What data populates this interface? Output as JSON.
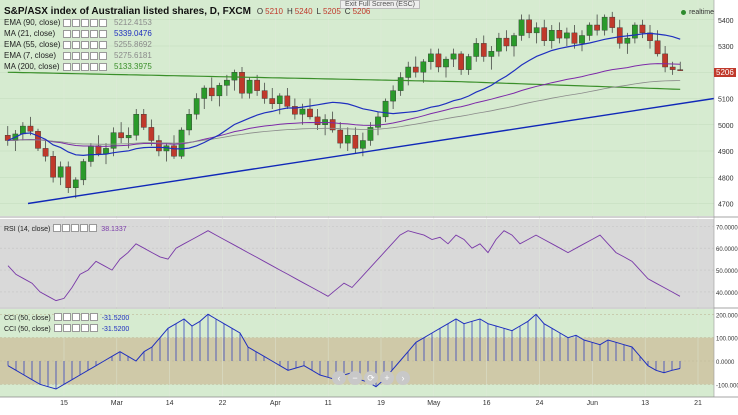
{
  "header": {
    "symbol": "S&P/ASX index of Australian listed shares, D, FXCM",
    "ohlc": [
      {
        "k": "O",
        "v": "5210"
      },
      {
        "k": "H",
        "v": "5240"
      },
      {
        "k": "L",
        "v": "5205"
      },
      {
        "k": "C",
        "v": "5206"
      }
    ],
    "exit_fullscreen": "Exit Full Screen (ESC)",
    "realtime": "realtime"
  },
  "indicators": [
    {
      "name": "EMA (90, close)",
      "value": "5212.4153",
      "color": "#8a8a8a"
    },
    {
      "name": "MA (21, close)",
      "value": "5339.0476",
      "color": "#1f2fbf"
    },
    {
      "name": "EMA (55, close)",
      "value": "5255.8692",
      "color": "#8a8a8a"
    },
    {
      "name": "EMA (7, close)",
      "value": "5275.6181",
      "color": "#8a8a8a"
    },
    {
      "name": "MA (200, close)",
      "value": "5133.3975",
      "color": "#3a8f2a"
    }
  ],
  "price_badge": "5206",
  "rsi": {
    "label": "RSI (14, close)",
    "value": "38.1337",
    "ticks": [
      "70.0000",
      "60.0000",
      "50.0000",
      "40.0000"
    ]
  },
  "cci": {
    "rows": [
      {
        "label": "CCI (50, close)",
        "value": "-31.5200"
      },
      {
        "label": "CCI (50, close)",
        "value": "-31.5200"
      }
    ],
    "ticks": [
      "200.0000",
      "100.0000",
      "0.0000",
      "-100.0000"
    ]
  },
  "x_ticks": [
    "15",
    "Mar",
    "14",
    "22",
    "Apr",
    "11",
    "19",
    "May",
    "16",
    "24",
    "Jun",
    "13",
    "21"
  ],
  "price_ticks": [
    "5400",
    "5300",
    "5200",
    "5100",
    "5000",
    "4900",
    "4800",
    "4700"
  ],
  "nav": [
    "‹",
    "−",
    "⟳",
    "+",
    "›"
  ],
  "colors": {
    "bg": "#d6ebd0",
    "up": "#2a9a2a",
    "down": "#c0392b",
    "ma21": "#1f2fbf",
    "ema": "#7d2aa8",
    "ma200": "#3a8f2a",
    "trend": "#1028b8",
    "rsi": "#7a3aa8",
    "cci": "#1f2fbf"
  },
  "chart_data": [
    {
      "type": "candlestick",
      "title": "S&P/ASX index of Australian listed shares, D, FXCM",
      "ylim": [
        4660,
        5460
      ],
      "ohlc": [
        [
          4960,
          4995,
          4920,
          4940
        ],
        [
          4940,
          4980,
          4900,
          4965
        ],
        [
          4965,
          5010,
          4940,
          4995
        ],
        [
          4995,
          5030,
          4960,
          4975
        ],
        [
          4975,
          4985,
          4900,
          4910
        ],
        [
          4910,
          4940,
          4860,
          4880
        ],
        [
          4880,
          4900,
          4780,
          4800
        ],
        [
          4800,
          4860,
          4770,
          4840
        ],
        [
          4840,
          4860,
          4740,
          4760
        ],
        [
          4760,
          4800,
          4720,
          4790
        ],
        [
          4790,
          4870,
          4770,
          4860
        ],
        [
          4860,
          4930,
          4840,
          4920
        ],
        [
          4920,
          4960,
          4880,
          4890
        ],
        [
          4890,
          4930,
          4850,
          4910
        ],
        [
          4910,
          4990,
          4880,
          4970
        ],
        [
          4970,
          5010,
          4930,
          4950
        ],
        [
          4950,
          4990,
          4910,
          4960
        ],
        [
          4960,
          5060,
          4940,
          5040
        ],
        [
          5040,
          5060,
          4980,
          4990
        ],
        [
          4990,
          5020,
          4920,
          4940
        ],
        [
          4940,
          4960,
          4880,
          4900
        ],
        [
          4900,
          4930,
          4860,
          4920
        ],
        [
          4920,
          4960,
          4870,
          4880
        ],
        [
          4880,
          4990,
          4870,
          4980
        ],
        [
          4980,
          5060,
          4960,
          5040
        ],
        [
          5040,
          5120,
          5020,
          5100
        ],
        [
          5100,
          5150,
          5060,
          5140
        ],
        [
          5140,
          5180,
          5090,
          5110
        ],
        [
          5110,
          5160,
          5070,
          5150
        ],
        [
          5150,
          5190,
          5110,
          5170
        ],
        [
          5170,
          5210,
          5130,
          5200
        ],
        [
          5200,
          5220,
          5100,
          5120
        ],
        [
          5120,
          5180,
          5100,
          5170
        ],
        [
          5170,
          5190,
          5110,
          5130
        ],
        [
          5130,
          5160,
          5080,
          5100
        ],
        [
          5100,
          5140,
          5060,
          5080
        ],
        [
          5080,
          5120,
          5040,
          5110
        ],
        [
          5110,
          5140,
          5060,
          5070
        ],
        [
          5070,
          5100,
          5020,
          5040
        ],
        [
          5040,
          5080,
          5000,
          5060
        ],
        [
          5060,
          5100,
          5020,
          5030
        ],
        [
          5030,
          5060,
          4980,
          5000
        ],
        [
          5000,
          5040,
          4960,
          5020
        ],
        [
          5020,
          5050,
          4970,
          4980
        ],
        [
          4980,
          5010,
          4910,
          4930
        ],
        [
          4930,
          4990,
          4900,
          4960
        ],
        [
          4960,
          4990,
          4890,
          4910
        ],
        [
          4910,
          4970,
          4880,
          4940
        ],
        [
          4940,
          5010,
          4920,
          4990
        ],
        [
          4990,
          5050,
          4960,
          5030
        ],
        [
          5030,
          5100,
          5010,
          5090
        ],
        [
          5090,
          5150,
          5060,
          5130
        ],
        [
          5130,
          5200,
          5110,
          5180
        ],
        [
          5180,
          5240,
          5150,
          5220
        ],
        [
          5220,
          5260,
          5180,
          5200
        ],
        [
          5200,
          5250,
          5160,
          5240
        ],
        [
          5240,
          5290,
          5210,
          5270
        ],
        [
          5270,
          5290,
          5200,
          5220
        ],
        [
          5220,
          5260,
          5180,
          5250
        ],
        [
          5250,
          5290,
          5220,
          5270
        ],
        [
          5270,
          5280,
          5190,
          5210
        ],
        [
          5210,
          5270,
          5190,
          5260
        ],
        [
          5260,
          5330,
          5240,
          5310
        ],
        [
          5310,
          5340,
          5240,
          5260
        ],
        [
          5260,
          5300,
          5210,
          5280
        ],
        [
          5280,
          5350,
          5260,
          5330
        ],
        [
          5330,
          5360,
          5280,
          5300
        ],
        [
          5300,
          5350,
          5260,
          5340
        ],
        [
          5340,
          5420,
          5320,
          5400
        ],
        [
          5400,
          5420,
          5330,
          5350
        ],
        [
          5350,
          5390,
          5310,
          5370
        ],
        [
          5370,
          5400,
          5300,
          5320
        ],
        [
          5320,
          5380,
          5290,
          5360
        ],
        [
          5360,
          5390,
          5310,
          5330
        ],
        [
          5330,
          5370,
          5300,
          5350
        ],
        [
          5350,
          5380,
          5290,
          5310
        ],
        [
          5310,
          5360,
          5280,
          5340
        ],
        [
          5340,
          5390,
          5320,
          5380
        ],
        [
          5380,
          5420,
          5340,
          5360
        ],
        [
          5360,
          5420,
          5340,
          5410
        ],
        [
          5410,
          5430,
          5350,
          5370
        ],
        [
          5370,
          5400,
          5290,
          5310
        ],
        [
          5310,
          5350,
          5270,
          5330
        ],
        [
          5330,
          5390,
          5310,
          5380
        ],
        [
          5380,
          5400,
          5330,
          5350
        ],
        [
          5350,
          5380,
          5290,
          5320
        ],
        [
          5320,
          5360,
          5260,
          5270
        ],
        [
          5270,
          5300,
          5200,
          5220
        ],
        [
          5220,
          5240,
          5190,
          5210
        ],
        [
          5210,
          5240,
          5205,
          5206
        ]
      ],
      "trendline": [
        [
          0,
          4700
        ],
        [
          95,
          5100
        ]
      ]
    },
    {
      "type": "line",
      "name": "RSI (14, close)",
      "ylim": [
        34,
        72
      ],
      "values": [
        52,
        48,
        46,
        44,
        40,
        38,
        36,
        37,
        42,
        48,
        50,
        54,
        52,
        50,
        55,
        58,
        62,
        60,
        58,
        56,
        55,
        60,
        62,
        64,
        66,
        68,
        66,
        64,
        62,
        60,
        58,
        56,
        54,
        52,
        50,
        48,
        46,
        44,
        42,
        40,
        38,
        41,
        44,
        42,
        46,
        50,
        54,
        58,
        62,
        66,
        68,
        67,
        66,
        64,
        65,
        62,
        66,
        64,
        60,
        62,
        58,
        64,
        68,
        66,
        62,
        64,
        66,
        64,
        62,
        60,
        58,
        60,
        62,
        64,
        66,
        62,
        58,
        56,
        54,
        50,
        46,
        44,
        42,
        40,
        38
      ]
    },
    {
      "type": "bar",
      "name": "CCI (50, close)",
      "ylim": [
        -150,
        210
      ],
      "values": [
        -20,
        -40,
        -60,
        -80,
        -100,
        -110,
        -120,
        -100,
        -80,
        -60,
        -40,
        -20,
        0,
        20,
        40,
        20,
        0,
        40,
        60,
        100,
        140,
        160,
        180,
        150,
        170,
        200,
        180,
        160,
        140,
        120,
        60,
        40,
        20,
        0,
        -20,
        -40,
        -30,
        -20,
        -40,
        -60,
        -70,
        -80,
        -60,
        -50,
        -80,
        -90,
        -110,
        -80,
        -40,
        0,
        40,
        80,
        100,
        120,
        140,
        160,
        180,
        160,
        170,
        180,
        160,
        150,
        140,
        130,
        150,
        170,
        200,
        160,
        140,
        120,
        100,
        110,
        90,
        80,
        70,
        90,
        80,
        70,
        60,
        20,
        -20,
        -40,
        -50,
        -40,
        -32
      ]
    }
  ]
}
